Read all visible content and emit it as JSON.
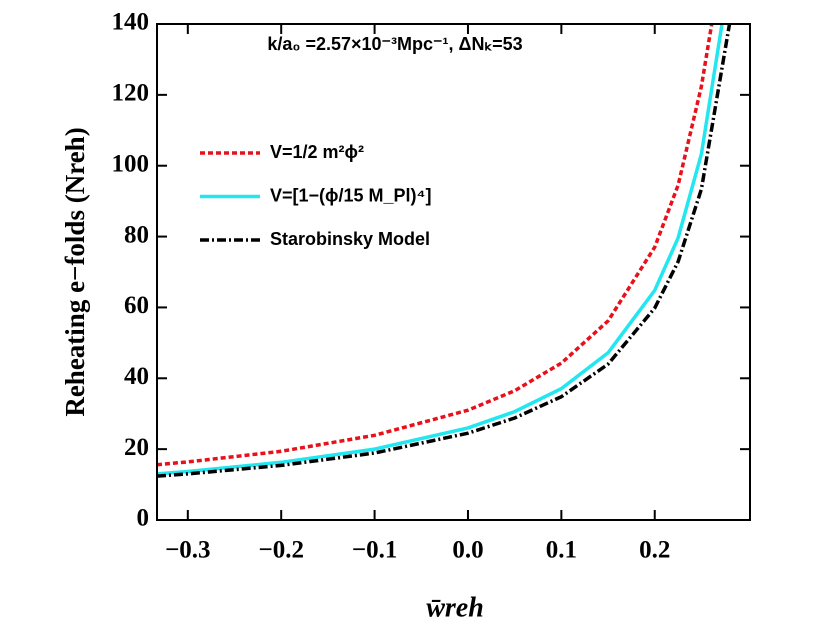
{
  "chart_data": {
    "type": "line",
    "annotation": "k/a₀ =2.57×10⁻³Mpc⁻¹, ΔNₖ=53",
    "xlabel": "w̄reh",
    "ylabel": "Reheating e−folds (Nreh)",
    "xlim": [
      -0.333,
      0.302
    ],
    "ylim": [
      0,
      140
    ],
    "xticks": [
      {
        "value": -0.3,
        "label": "−0.3"
      },
      {
        "value": -0.2,
        "label": "−0.2"
      },
      {
        "value": -0.1,
        "label": "−0.1"
      },
      {
        "value": 0,
        "label": "0.0"
      },
      {
        "value": 0.1,
        "label": "0.1"
      },
      {
        "value": 0.2,
        "label": "0.2"
      }
    ],
    "yticks": [
      0,
      20,
      40,
      60,
      80,
      100,
      120,
      140
    ],
    "legend": "upper left",
    "series": [
      {
        "name": "V=1/2 m²ϕ²",
        "color": "#e8101a",
        "dash": "dashed",
        "x": [
          -0.333,
          -0.3,
          -0.2,
          -0.1,
          0,
          0.05,
          0.1,
          0.15,
          0.2,
          0.225,
          0.25,
          0.261
        ],
        "values": [
          15.6,
          16.4,
          19.4,
          23.9,
          31.0,
          36.5,
          44.3,
          56.2,
          77.0,
          94.5,
          122.4,
          140
        ]
      },
      {
        "name": "V=[1−(ϕ/15 M_Pl)⁴]",
        "color": "#22e6f0",
        "dash": "solid",
        "x": [
          -0.333,
          -0.3,
          -0.2,
          -0.1,
          0,
          0.05,
          0.1,
          0.15,
          0.2,
          0.225,
          0.25,
          0.272
        ],
        "values": [
          13.0,
          13.7,
          16.3,
          20.0,
          26.0,
          30.6,
          37.1,
          47.2,
          64.8,
          79.6,
          103.3,
          140
        ]
      },
      {
        "name": "Starobinsky Model",
        "color": "#000000",
        "dash": "dashdot",
        "x": [
          -0.333,
          -0.3,
          -0.2,
          -0.1,
          0,
          0.05,
          0.1,
          0.15,
          0.2,
          0.225,
          0.25,
          0.28
        ],
        "values": [
          12.4,
          13.0,
          15.4,
          18.9,
          24.5,
          28.8,
          34.8,
          44.0,
          59.8,
          72.9,
          93.4,
          140
        ]
      }
    ]
  }
}
